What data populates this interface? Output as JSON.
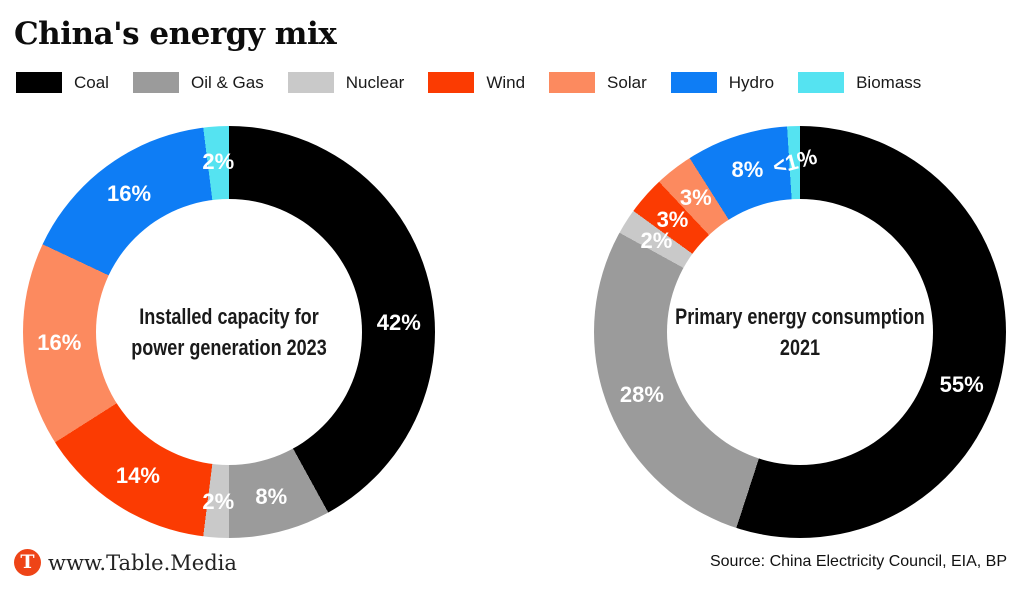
{
  "title": "China's energy mix",
  "legend": {
    "items": [
      {
        "label": "Coal",
        "color": "#000000"
      },
      {
        "label": "Oil & Gas",
        "color": "#9b9b9b"
      },
      {
        "label": "Nuclear",
        "color": "#c9c9c9"
      },
      {
        "label": "Wind",
        "color": "#fb3b02"
      },
      {
        "label": "Solar",
        "color": "#fc8a5f"
      },
      {
        "label": "Hydro",
        "color": "#0e7df5"
      },
      {
        "label": "Biomass",
        "color": "#55e3f1"
      }
    ]
  },
  "chart_data": [
    {
      "type": "pie",
      "subtype": "donut",
      "title": "Installed capacity for power generation 2023",
      "title_lines": [
        "Installed capacity for",
        "power generation 2023"
      ],
      "unit": "%",
      "start_angle_deg": 0,
      "direction": "clockwise",
      "legend_position": "top",
      "slices": [
        {
          "name": "Coal",
          "value": 42,
          "label": "42%",
          "label_angle_deg": 87
        },
        {
          "name": "Oil & Gas",
          "value": 8,
          "label": "8%"
        },
        {
          "name": "Nuclear",
          "value": 2,
          "label": "2%"
        },
        {
          "name": "Wind",
          "value": 14,
          "label": "14%"
        },
        {
          "name": "Solar",
          "value": 16,
          "label": "16%"
        },
        {
          "name": "Hydro",
          "value": 16,
          "label": "16%"
        },
        {
          "name": "Biomass",
          "value": 2,
          "label": "2%"
        }
      ]
    },
    {
      "type": "pie",
      "subtype": "donut",
      "title": "Primary energy consumption 2021",
      "title_lines": [
        "Primary energy consumption",
        "2021"
      ],
      "unit": "%",
      "start_angle_deg": 0,
      "direction": "clockwise",
      "legend_position": "top",
      "slices": [
        {
          "name": "Coal",
          "value": 55,
          "label": "55%",
          "label_angle_deg": 108
        },
        {
          "name": "Oil & Gas",
          "value": 28,
          "label": "28%"
        },
        {
          "name": "Nuclear",
          "value": 2,
          "label": "2%"
        },
        {
          "name": "Wind",
          "value": 3,
          "label": "3%"
        },
        {
          "name": "Solar",
          "value": 3,
          "label": "3%"
        },
        {
          "name": "Hydro",
          "value": 8,
          "label": "8%"
        },
        {
          "name": "Biomass",
          "value": 1,
          "label": "<1%",
          "label_rotation_deg": -15
        }
      ]
    }
  ],
  "footer": {
    "brand": "www.Table.Media",
    "brand_logo_letter": "T",
    "brand_logo_color": "#ee4417",
    "source": "Source: China Electricity Council, EIA, BP"
  }
}
